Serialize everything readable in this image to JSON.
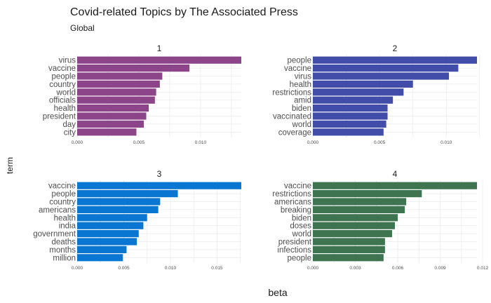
{
  "chart_data": {
    "type": "bar",
    "orientation": "horizontal",
    "title": "Covid-related Topics by The Associated Press",
    "subtitle": "Global",
    "xlabel": "beta",
    "ylabel": "term",
    "grid": true,
    "facets": [
      {
        "name": "1",
        "color": "#8B4588",
        "xlim": [
          0,
          0.0133
        ],
        "ticks": [
          0,
          0.005,
          0.01
        ],
        "tick_labels": [
          "0.000",
          "0.005",
          "0.010"
        ],
        "categories": [
          "virus",
          "vaccine",
          "people",
          "country",
          "world",
          "officials",
          "health",
          "president",
          "day",
          "city"
        ],
        "values": [
          0.0133,
          0.0091,
          0.0069,
          0.0067,
          0.0064,
          0.0063,
          0.0058,
          0.0056,
          0.0054,
          0.0048
        ]
      },
      {
        "name": "2",
        "color": "#414DA9",
        "xlim": [
          0,
          0.0123
        ],
        "ticks": [
          0,
          0.005,
          0.01
        ],
        "tick_labels": [
          "0.000",
          "0.005",
          "0.010"
        ],
        "categories": [
          "people",
          "vaccine",
          "virus",
          "health",
          "restrictions",
          "amid",
          "biden",
          "vaccinated",
          "world",
          "coverage"
        ],
        "values": [
          0.0123,
          0.0109,
          0.0102,
          0.0075,
          0.0068,
          0.006,
          0.0056,
          0.0056,
          0.0055,
          0.0053
        ]
      },
      {
        "name": "3",
        "color": "#0977D1",
        "xlim": [
          0,
          0.0176
        ],
        "ticks": [
          0,
          0.005,
          0.01,
          0.015
        ],
        "tick_labels": [
          "0.000",
          "0.005",
          "0.010",
          "0.015"
        ],
        "categories": [
          "vaccine",
          "people",
          "country",
          "americans",
          "health",
          "india",
          "government",
          "deaths",
          "months",
          "million"
        ],
        "values": [
          0.0176,
          0.0108,
          0.0089,
          0.0087,
          0.0075,
          0.0071,
          0.0066,
          0.0064,
          0.0053,
          0.0049
        ]
      },
      {
        "name": "4",
        "color": "#3F7451",
        "xlim": [
          0,
          0.0116
        ],
        "ticks": [
          0,
          0.003,
          0.006,
          0.009,
          0.012
        ],
        "tick_labels": [
          "0.000",
          "0.003",
          "0.006",
          "0.009",
          "0.012"
        ],
        "categories": [
          "vaccine",
          "restrictions",
          "americans",
          "breaking",
          "biden",
          "doses",
          "world",
          "president",
          "infections",
          "people"
        ],
        "values": [
          0.0116,
          0.0077,
          0.0066,
          0.0065,
          0.006,
          0.0058,
          0.0056,
          0.0051,
          0.0051,
          0.005
        ]
      }
    ]
  }
}
